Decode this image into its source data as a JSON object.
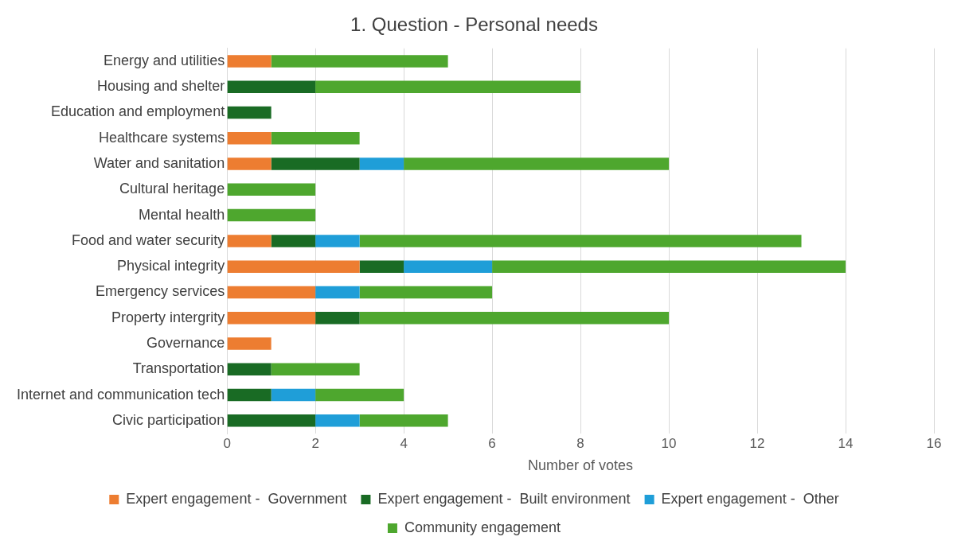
{
  "chart_data": {
    "type": "bar",
    "orientation": "horizontal",
    "stacked": true,
    "title": "1. Question - Personal needs",
    "xlabel": "Number of votes",
    "categories": [
      "Energy and utilities",
      "Housing and shelter",
      "Education and employment",
      "Healthcare systems",
      "Water and sanitation",
      "Cultural heritage",
      "Mental health",
      "Food and water security",
      "Physical integrity",
      "Emergency services",
      "Property intergrity",
      "Governance",
      "Transportation",
      "Internet and communication tech",
      "Civic participation"
    ],
    "series": [
      {
        "name": "Expert engagement -  Government",
        "color": "#ed7d31",
        "values": [
          1,
          0,
          0,
          1,
          1,
          0,
          0,
          1,
          3,
          2,
          2,
          1,
          0,
          0,
          0
        ]
      },
      {
        "name": "Expert engagement -  Built environment",
        "color": "#196b24",
        "values": [
          0,
          2,
          1,
          0,
          2,
          0,
          0,
          1,
          1,
          0,
          1,
          0,
          1,
          1,
          2
        ]
      },
      {
        "name": "Expert engagement -  Other",
        "color": "#1f9ed8",
        "values": [
          0,
          0,
          0,
          0,
          1,
          0,
          0,
          1,
          2,
          1,
          0,
          0,
          0,
          1,
          1
        ]
      },
      {
        "name": "Community engagement",
        "color": "#4ea72e",
        "values": [
          4,
          6,
          0,
          2,
          6,
          2,
          2,
          10,
          8,
          3,
          7,
          0,
          2,
          2,
          2
        ]
      }
    ],
    "xlim": [
      0,
      16
    ],
    "xticks": [
      0,
      2,
      4,
      6,
      8,
      10,
      12,
      14,
      16
    ],
    "grid": "x",
    "legend": "bottom"
  }
}
